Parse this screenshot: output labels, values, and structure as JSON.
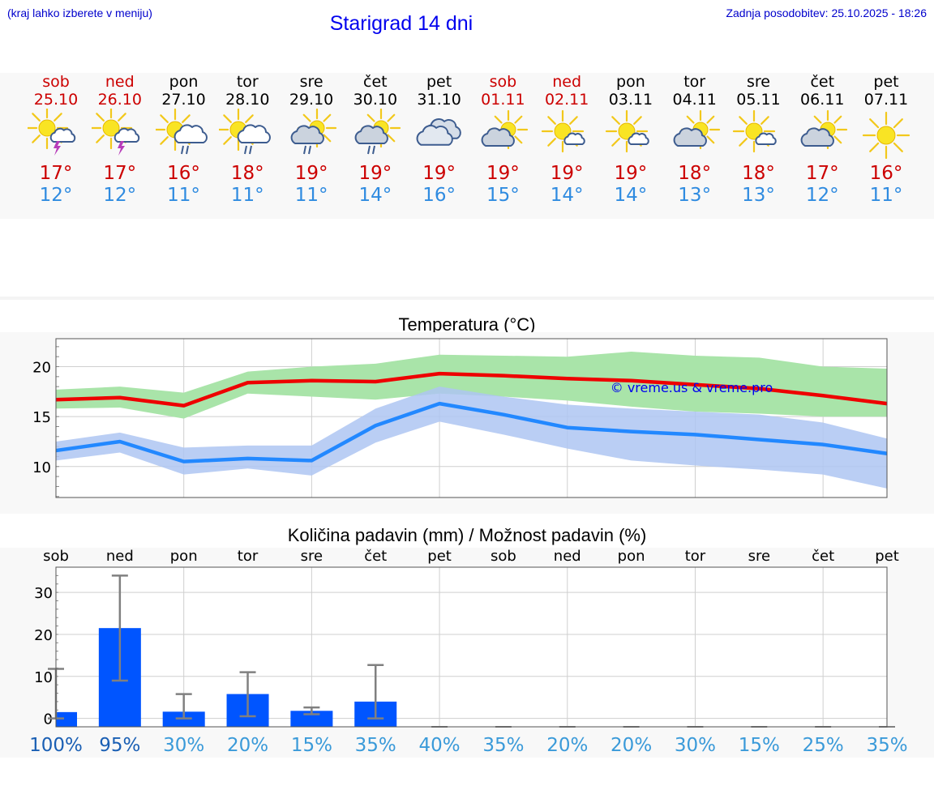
{
  "header": {
    "menu_hint": "(kraj lahko izberete v meniju)",
    "title": "Starigrad 14 dni",
    "updated": "Zadnja posodobitev: 25.10.2025 - 18:26"
  },
  "days": [
    {
      "name": "sob",
      "date": "25.10",
      "weekend": true,
      "icon": "sun-cloud-thunder-icon",
      "tmax": "17°",
      "tmin": "12°"
    },
    {
      "name": "ned",
      "date": "26.10",
      "weekend": true,
      "icon": "sun-cloud-thunder-icon",
      "tmax": "17°",
      "tmin": "12°"
    },
    {
      "name": "pon",
      "date": "27.10",
      "weekend": false,
      "icon": "sun-cloud-rain-icon",
      "tmax": "16°",
      "tmin": "11°"
    },
    {
      "name": "tor",
      "date": "28.10",
      "weekend": false,
      "icon": "sun-cloud-rain-icon",
      "tmax": "18°",
      "tmin": "11°"
    },
    {
      "name": "sre",
      "date": "29.10",
      "weekend": false,
      "icon": "cloud-sun-rain-icon",
      "tmax": "19°",
      "tmin": "11°"
    },
    {
      "name": "čet",
      "date": "30.10",
      "weekend": false,
      "icon": "cloud-sun-rain-icon",
      "tmax": "19°",
      "tmin": "14°"
    },
    {
      "name": "pet",
      "date": "31.10",
      "weekend": false,
      "icon": "cloudy-icon",
      "tmax": "19°",
      "tmin": "16°"
    },
    {
      "name": "sob",
      "date": "01.11",
      "weekend": true,
      "icon": "cloud-sun-icon",
      "tmax": "19°",
      "tmin": "15°"
    },
    {
      "name": "ned",
      "date": "02.11",
      "weekend": true,
      "icon": "sun-small-cloud-icon",
      "tmax": "19°",
      "tmin": "14°"
    },
    {
      "name": "pon",
      "date": "03.11",
      "weekend": false,
      "icon": "sun-small-cloud-icon",
      "tmax": "19°",
      "tmin": "14°"
    },
    {
      "name": "tor",
      "date": "04.11",
      "weekend": false,
      "icon": "cloud-sun-icon",
      "tmax": "18°",
      "tmin": "13°"
    },
    {
      "name": "sre",
      "date": "05.11",
      "weekend": false,
      "icon": "sun-small-cloud-icon",
      "tmax": "18°",
      "tmin": "13°"
    },
    {
      "name": "čet",
      "date": "06.11",
      "weekend": false,
      "icon": "cloud-sun-icon",
      "tmax": "17°",
      "tmin": "12°"
    },
    {
      "name": "pet",
      "date": "07.11",
      "weekend": false,
      "icon": "sun-icon",
      "tmax": "16°",
      "tmin": "11°"
    }
  ],
  "colors": {
    "max_line": "#ee0000",
    "max_band": "#a9e4a9",
    "min_line": "#2288ff",
    "min_band": "#aec6f2",
    "bar": "#0055ff",
    "errbar": "#808080",
    "weekend": "#cc0000",
    "min_text": "#2f8be0"
  },
  "chart_data": [
    {
      "type": "line",
      "title": "Temperatura (°C)",
      "watermark": "© vreme.us & vreme.pro",
      "x": [
        0,
        1,
        2,
        3,
        4,
        5,
        6,
        7,
        8,
        9,
        10,
        11,
        12,
        13
      ],
      "ylim": [
        6.9,
        22.8
      ],
      "yticks": [
        10,
        15,
        20
      ],
      "grid": true,
      "series": [
        {
          "values": [
            16.7,
            16.9,
            16.1,
            18.4,
            18.6,
            18.5,
            19.3,
            19.1,
            18.8,
            18.6,
            18.2,
            17.8,
            17.1,
            16.3
          ],
          "band_low": [
            15.8,
            15.9,
            14.8,
            17.3,
            17.0,
            16.7,
            17.3,
            17.0,
            16.6,
            16.0,
            15.5,
            15.3,
            15.0,
            15.0
          ],
          "band_high": [
            17.7,
            18.0,
            17.4,
            19.5,
            20.0,
            20.3,
            21.2,
            21.1,
            21.0,
            21.5,
            21.1,
            20.9,
            20.0,
            19.8
          ]
        },
        {
          "values": [
            11.6,
            12.5,
            10.5,
            10.8,
            10.6,
            14.1,
            16.3,
            15.2,
            13.9,
            13.5,
            13.2,
            12.7,
            12.2,
            11.3
          ],
          "band_low": [
            10.6,
            11.4,
            9.2,
            9.8,
            9.1,
            12.4,
            14.5,
            13.2,
            11.8,
            10.6,
            10.1,
            9.7,
            9.2,
            7.8
          ],
          "band_high": [
            12.5,
            13.4,
            11.9,
            12.1,
            12.1,
            15.8,
            18.0,
            17.0,
            16.2,
            15.8,
            15.5,
            15.2,
            14.4,
            12.8
          ]
        }
      ]
    },
    {
      "type": "bar",
      "title": "Količina padavin (mm) / Možnost padavin (%)",
      "categories": [
        "sob",
        "ned",
        "pon",
        "tor",
        "sre",
        "čet",
        "pet",
        "sob",
        "ned",
        "pon",
        "tor",
        "sre",
        "čet",
        "pet"
      ],
      "values": [
        1.5,
        21.5,
        1.6,
        5.8,
        1.8,
        4.0,
        0,
        0,
        0,
        0,
        0,
        0,
        0,
        0
      ],
      "err_low": [
        0,
        9,
        0,
        0.5,
        1,
        0,
        0,
        0,
        0,
        0,
        0,
        0,
        0,
        0
      ],
      "err_high": [
        11.8,
        34,
        5.8,
        11,
        2.6,
        12.7,
        0,
        0,
        0,
        0,
        0,
        0,
        0,
        0
      ],
      "ylim": [
        -2,
        36
      ],
      "yticks": [
        0,
        10,
        20,
        30
      ],
      "probabilities": [
        "100%",
        "95%",
        "30%",
        "20%",
        "15%",
        "35%",
        "40%",
        "35%",
        "20%",
        "20%",
        "30%",
        "15%",
        "25%",
        "35%"
      ]
    }
  ]
}
